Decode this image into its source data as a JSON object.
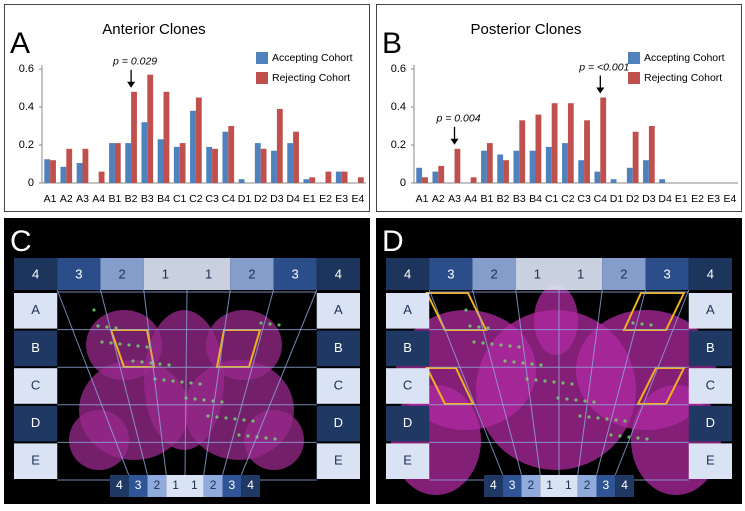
{
  "chart_data": [
    {
      "type": "bar",
      "panel": "A",
      "title": "Anterior Clones",
      "categories": [
        "A1",
        "A2",
        "A3",
        "A4",
        "B1",
        "B2",
        "B3",
        "B4",
        "C1",
        "C2",
        "C3",
        "C4",
        "D1",
        "D2",
        "D3",
        "D4",
        "E1",
        "E2",
        "E3",
        "E4"
      ],
      "series": [
        {
          "name": "Accepting Cohort",
          "color": "#4f81bd",
          "values": [
            0.125,
            0.085,
            0.105,
            0,
            0.21,
            0.21,
            0.32,
            0.23,
            0.19,
            0.38,
            0.19,
            0.27,
            0.02,
            0.21,
            0.17,
            0.21,
            0.02,
            0,
            0.06,
            0
          ]
        },
        {
          "name": "Rejecting Cohort",
          "color": "#c0504d",
          "values": [
            0.12,
            0.18,
            0.18,
            0.06,
            0.21,
            0.48,
            0.57,
            0.48,
            0.21,
            0.45,
            0.18,
            0.3,
            0,
            0.18,
            0.39,
            0.27,
            0.03,
            0.06,
            0.06,
            0.03
          ]
        }
      ],
      "ylim": [
        0,
        0.6
      ],
      "yticks": [
        0,
        0.2,
        0.4,
        0.6
      ],
      "grid": false,
      "annotations": [
        {
          "text": "p = 0.029",
          "category": "B2"
        }
      ]
    },
    {
      "type": "bar",
      "panel": "B",
      "title": "Posterior Clones",
      "categories": [
        "A1",
        "A2",
        "A3",
        "A4",
        "B1",
        "B2",
        "B3",
        "B4",
        "C1",
        "C2",
        "C3",
        "C4",
        "D1",
        "D2",
        "D3",
        "D4",
        "E1",
        "E2",
        "E3",
        "E4"
      ],
      "series": [
        {
          "name": "Accepting Cohort",
          "color": "#4f81bd",
          "values": [
            0.08,
            0.06,
            0,
            0,
            0.17,
            0.15,
            0.17,
            0.17,
            0.19,
            0.21,
            0.12,
            0.06,
            0.02,
            0.08,
            0.12,
            0.02,
            0,
            0,
            0,
            0
          ]
        },
        {
          "name": "Rejecting Cohort",
          "color": "#c0504d",
          "values": [
            0.03,
            0.09,
            0.18,
            0.03,
            0.21,
            0.12,
            0.33,
            0.36,
            0.42,
            0.42,
            0.33,
            0.45,
            0,
            0.27,
            0.3,
            0,
            0,
            0,
            0,
            0
          ]
        }
      ],
      "ylim": [
        0,
        0.6
      ],
      "yticks": [
        0,
        0.2,
        0.4,
        0.6
      ],
      "grid": false,
      "annotations": [
        {
          "text": "p = 0.004",
          "category": "A3"
        },
        {
          "text": "p = <0.001",
          "category": "C4"
        }
      ]
    }
  ],
  "image_panels": [
    {
      "letter": "C",
      "columns": [
        "4",
        "3",
        "2",
        "1",
        "1",
        "2",
        "3",
        "4"
      ],
      "rows": [
        "A",
        "B",
        "C",
        "D",
        "E"
      ],
      "bottom": [
        "4",
        "3",
        "2",
        "1",
        "1",
        "2",
        "3",
        "4"
      ]
    },
    {
      "letter": "D",
      "columns": [
        "4",
        "3",
        "2",
        "1",
        "1",
        "2",
        "3",
        "4"
      ],
      "rows": [
        "A",
        "B",
        "C",
        "D",
        "E"
      ],
      "bottom": [
        "4",
        "3",
        "2",
        "1",
        "1",
        "2",
        "3",
        "4"
      ]
    }
  ]
}
